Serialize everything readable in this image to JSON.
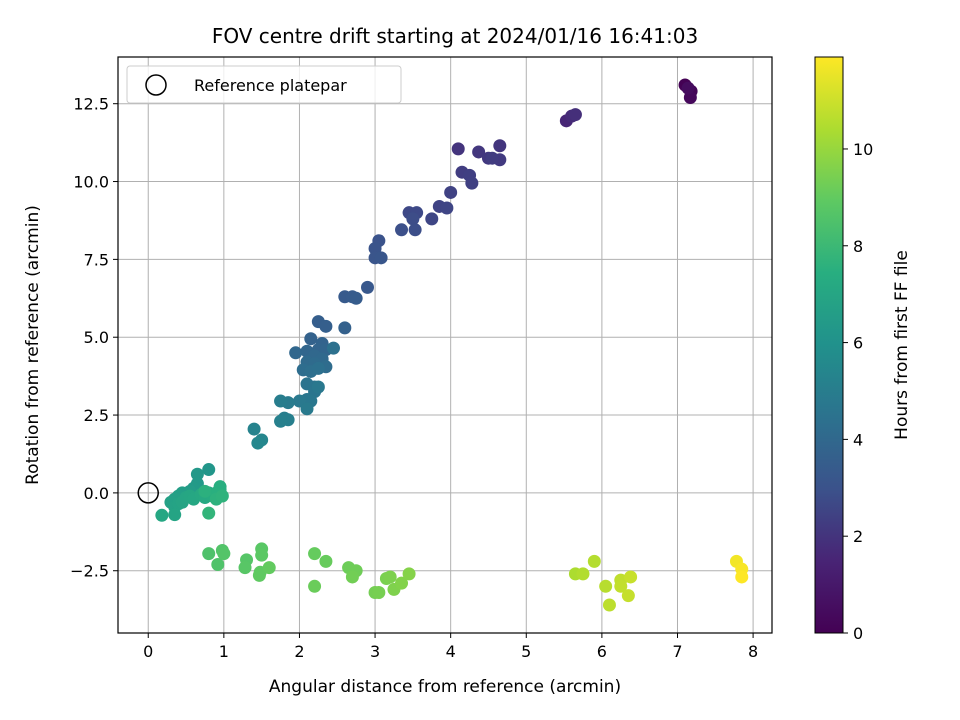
{
  "chart_data": {
    "type": "scatter",
    "title": "FOV centre drift starting at 2024/01/16 16:41:03",
    "xlabel": "Angular distance from reference (arcmin)",
    "ylabel": "Rotation from reference (arcmin)",
    "xlim": [
      -0.4,
      8.25
    ],
    "ylim": [
      -4.5,
      14.0
    ],
    "xticks": [
      0,
      1,
      2,
      3,
      4,
      5,
      6,
      7,
      8
    ],
    "xtick_labels": [
      "0",
      "1",
      "2",
      "3",
      "4",
      "5",
      "6",
      "7",
      "8"
    ],
    "yticks": [
      -2.5,
      0.0,
      2.5,
      5.0,
      7.5,
      10.0,
      12.5
    ],
    "ytick_labels": [
      "−2.5",
      "0.0",
      "2.5",
      "5.0",
      "7.5",
      "10.0",
      "12.5"
    ],
    "grid": true,
    "colormap": "viridis",
    "colorbar": {
      "label": "Hours from first FF file",
      "min": 0,
      "max": 11.9,
      "ticks": [
        0,
        2,
        4,
        6,
        8,
        10
      ],
      "tick_labels": [
        "0",
        "2",
        "4",
        "6",
        "8",
        "10"
      ]
    },
    "reference": {
      "name": "Reference platepar",
      "x": 0.0,
      "y": 0.0
    },
    "legend": {
      "entries": [
        "Reference platepar"
      ],
      "placement": "upper left"
    },
    "points": [
      [
        7.1,
        13.1,
        0.0
      ],
      [
        7.18,
        12.9,
        0.15
      ],
      [
        7.17,
        12.7,
        0.3
      ],
      [
        7.14,
        13.0,
        0.45
      ],
      [
        5.53,
        11.95,
        1.55
      ],
      [
        5.6,
        12.1,
        1.7
      ],
      [
        5.65,
        12.15,
        1.85
      ],
      [
        4.1,
        11.05,
        2.0
      ],
      [
        4.65,
        11.15,
        2.05
      ],
      [
        4.37,
        10.95,
        2.1
      ],
      [
        4.5,
        10.75,
        2.15
      ],
      [
        4.65,
        10.7,
        2.2
      ],
      [
        4.55,
        10.75,
        2.25
      ],
      [
        4.15,
        10.3,
        2.3
      ],
      [
        4.25,
        10.2,
        2.35
      ],
      [
        4.28,
        9.95,
        2.4
      ],
      [
        4.0,
        9.65,
        2.45
      ],
      [
        3.85,
        9.2,
        2.5
      ],
      [
        3.95,
        9.15,
        2.55
      ],
      [
        3.75,
        8.8,
        2.6
      ],
      [
        3.45,
        9.0,
        2.65
      ],
      [
        3.55,
        9.0,
        2.7
      ],
      [
        3.5,
        8.8,
        2.8
      ],
      [
        3.53,
        8.45,
        2.85
      ],
      [
        3.35,
        8.45,
        2.9
      ],
      [
        3.05,
        8.1,
        3.0
      ],
      [
        3.0,
        7.85,
        3.05
      ],
      [
        3.0,
        7.55,
        3.1
      ],
      [
        3.08,
        7.55,
        3.15
      ],
      [
        2.9,
        6.6,
        3.25
      ],
      [
        2.6,
        6.3,
        3.35
      ],
      [
        2.7,
        6.3,
        3.4
      ],
      [
        2.75,
        6.25,
        3.45
      ],
      [
        2.25,
        5.5,
        3.55
      ],
      [
        2.35,
        5.35,
        3.6
      ],
      [
        2.6,
        5.3,
        3.65
      ],
      [
        2.15,
        4.95,
        3.7
      ],
      [
        2.3,
        4.8,
        3.75
      ],
      [
        2.25,
        4.6,
        3.8
      ],
      [
        2.35,
        4.6,
        3.85
      ],
      [
        2.1,
        4.55,
        3.9
      ],
      [
        1.95,
        4.5,
        3.95
      ],
      [
        2.2,
        4.4,
        4.0
      ],
      [
        2.3,
        4.3,
        4.05
      ],
      [
        2.1,
        4.2,
        4.1
      ],
      [
        2.2,
        4.15,
        4.15
      ],
      [
        2.35,
        4.05,
        4.2
      ],
      [
        2.05,
        3.95,
        4.25
      ],
      [
        2.15,
        3.9,
        4.3
      ],
      [
        2.25,
        4.0,
        4.35
      ],
      [
        2.45,
        4.65,
        4.4
      ],
      [
        2.1,
        3.5,
        4.5
      ],
      [
        2.2,
        3.4,
        4.55
      ],
      [
        2.2,
        3.25,
        4.6
      ],
      [
        2.1,
        3.0,
        4.65
      ],
      [
        2.15,
        2.95,
        4.7
      ],
      [
        2.25,
        3.4,
        4.75
      ],
      [
        2.0,
        2.95,
        4.8
      ],
      [
        2.1,
        2.7,
        4.85
      ],
      [
        1.85,
        2.9,
        4.9
      ],
      [
        1.75,
        2.95,
        5.0
      ],
      [
        1.8,
        2.4,
        5.05
      ],
      [
        1.85,
        2.35,
        5.1
      ],
      [
        1.75,
        2.3,
        5.15
      ],
      [
        1.4,
        2.05,
        5.3
      ],
      [
        1.5,
        1.7,
        5.4
      ],
      [
        1.45,
        1.6,
        5.45
      ],
      [
        0.8,
        0.75,
        6.2
      ],
      [
        0.65,
        0.6,
        6.3
      ],
      [
        0.65,
        0.3,
        6.35
      ],
      [
        0.6,
        0.15,
        6.4
      ],
      [
        0.55,
        0.05,
        6.5
      ],
      [
        0.45,
        0.0,
        6.6
      ],
      [
        0.4,
        -0.1,
        6.65
      ],
      [
        0.35,
        -0.2,
        6.7
      ],
      [
        0.3,
        -0.3,
        6.75
      ],
      [
        0.35,
        -0.45,
        6.8
      ],
      [
        0.4,
        -0.35,
        6.85
      ],
      [
        0.35,
        -0.7,
        6.9
      ],
      [
        0.45,
        -0.3,
        6.95
      ],
      [
        0.5,
        -0.15,
        7.0
      ],
      [
        0.55,
        -0.1,
        7.05
      ],
      [
        0.6,
        -0.2,
        7.1
      ],
      [
        0.7,
        -0.05,
        7.15
      ],
      [
        0.75,
        -0.15,
        7.2
      ],
      [
        0.8,
        0.0,
        7.25
      ],
      [
        0.85,
        -0.1,
        7.3
      ],
      [
        0.9,
        0.0,
        7.35
      ],
      [
        0.95,
        0.1,
        7.4
      ],
      [
        0.95,
        0.2,
        7.45
      ],
      [
        0.9,
        -0.05,
        7.5
      ],
      [
        0.75,
        0.05,
        7.55
      ],
      [
        0.9,
        -0.2,
        7.6
      ],
      [
        0.98,
        -0.1,
        7.65
      ],
      [
        0.18,
        -0.72,
        7.1
      ],
      [
        0.8,
        -0.65,
        7.75
      ],
      [
        0.8,
        -1.95,
        8.5
      ],
      [
        0.92,
        -2.3,
        8.55
      ],
      [
        0.98,
        -1.85,
        8.6
      ],
      [
        1.0,
        -1.95,
        8.65
      ],
      [
        1.3,
        -2.15,
        8.7
      ],
      [
        1.28,
        -2.4,
        8.75
      ],
      [
        1.5,
        -1.8,
        8.8
      ],
      [
        1.5,
        -2.0,
        8.85
      ],
      [
        1.48,
        -2.55,
        8.9
      ],
      [
        1.47,
        -2.65,
        8.95
      ],
      [
        1.6,
        -2.4,
        9.0
      ],
      [
        2.2,
        -1.95,
        9.05
      ],
      [
        2.35,
        -2.2,
        9.1
      ],
      [
        2.2,
        -3.0,
        9.15
      ],
      [
        2.65,
        -2.4,
        9.2
      ],
      [
        2.75,
        -2.5,
        9.25
      ],
      [
        2.7,
        -2.7,
        9.3
      ],
      [
        3.0,
        -3.2,
        9.35
      ],
      [
        3.05,
        -3.2,
        9.4
      ],
      [
        3.15,
        -2.75,
        9.45
      ],
      [
        3.2,
        -2.7,
        9.5
      ],
      [
        3.25,
        -3.1,
        9.55
      ],
      [
        3.35,
        -2.9,
        9.6
      ],
      [
        3.45,
        -2.6,
        9.65
      ],
      [
        5.65,
        -2.6,
        10.4
      ],
      [
        5.75,
        -2.6,
        10.5
      ],
      [
        5.9,
        -2.2,
        10.55
      ],
      [
        6.05,
        -3.0,
        10.6
      ],
      [
        6.1,
        -3.6,
        10.7
      ],
      [
        6.25,
        -2.8,
        10.75
      ],
      [
        6.25,
        -3.0,
        10.8
      ],
      [
        6.35,
        -3.3,
        10.85
      ],
      [
        6.38,
        -2.7,
        10.9
      ],
      [
        7.78,
        -2.2,
        11.7
      ],
      [
        7.85,
        -2.45,
        11.8
      ],
      [
        7.85,
        -2.7,
        11.9
      ]
    ]
  }
}
